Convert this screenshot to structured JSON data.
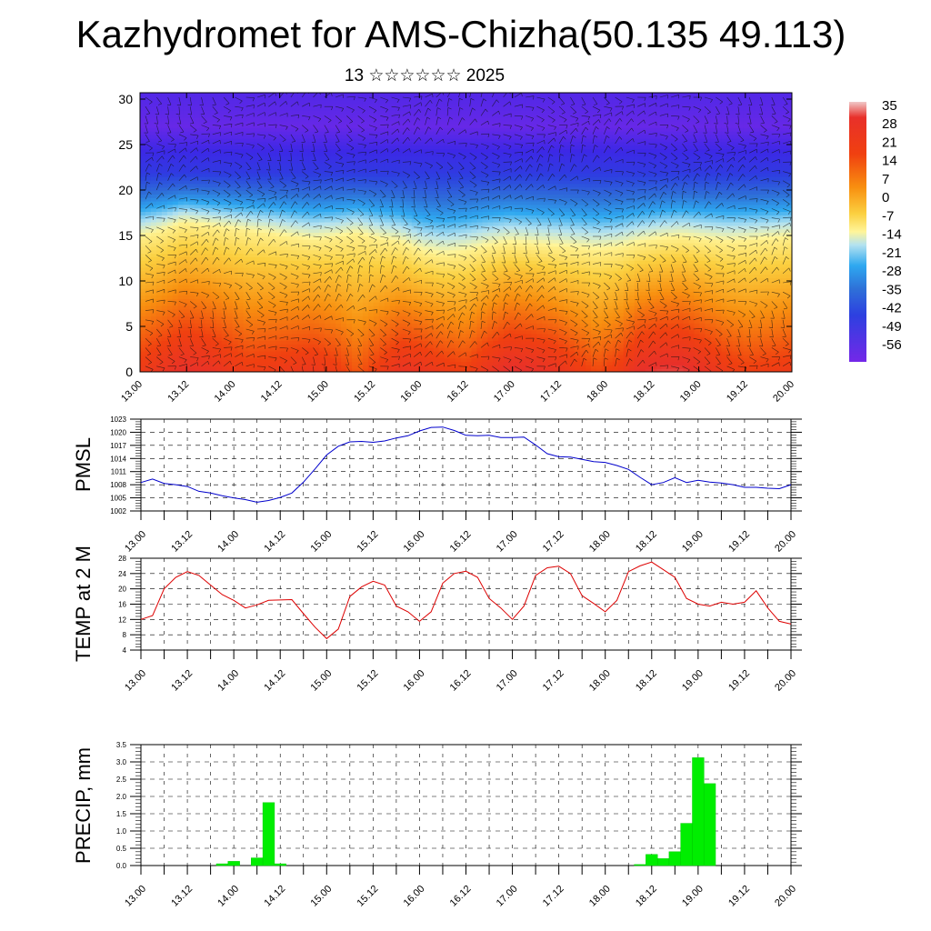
{
  "title": "Kazhydromet for AMS-Chizha(50.135 49.113)",
  "subtitle": "13 ☆☆☆☆☆☆ 2025",
  "chart_data": [
    {
      "type": "heatmap",
      "name": "vertical-cross-section",
      "xlabel": "",
      "ylabel": "",
      "x_tick_labels": [
        "13.00",
        "13.12",
        "14.00",
        "14.12",
        "15.00",
        "15.12",
        "16.00",
        "16.12",
        "17.00",
        "17.12",
        "18.00",
        "18.12",
        "19.00",
        "19.12",
        "20.00"
      ],
      "y_ticks": [
        0,
        5,
        10,
        15,
        20,
        25,
        30
      ],
      "ylim": [
        0,
        30.7
      ],
      "colorbar_labels": [
        "35",
        "28",
        "21",
        "14",
        "7",
        "0",
        "-7",
        "-14",
        "-21",
        "-28",
        "-35",
        "-42",
        "-49",
        "-56"
      ],
      "colorbar_range": [
        -60,
        37
      ],
      "surface_temperature": [
        18,
        21,
        24,
        23,
        20,
        17,
        18,
        19,
        20,
        17,
        12,
        17,
        22,
        21,
        18,
        16,
        21,
        25,
        24,
        22,
        18,
        14,
        17,
        24,
        26,
        26,
        22,
        18,
        16,
        17,
        18
      ],
      "freezing_level_km": [
        14.8,
        15.5,
        16.4,
        16.1,
        15.8,
        15.5,
        15.2,
        14.8,
        14.5,
        14.8,
        15.2,
        14.6,
        14.2,
        13.2,
        12.8,
        13.2,
        13.8,
        14.2,
        14.0,
        13.8,
        13.6,
        13.4,
        13.6,
        14.2,
        14.6,
        14.8,
        14.5,
        14.3,
        14.4,
        14.6,
        14.8
      ],
      "wind_barbs": true
    },
    {
      "type": "line",
      "name": "pmsl",
      "ylabel": "PMSL",
      "x_tick_labels": [
        "13.00",
        "13.12",
        "14.00",
        "14.12",
        "15.00",
        "15.12",
        "16.00",
        "16.12",
        "17.00",
        "17.12",
        "18.00",
        "18.12",
        "19.00",
        "19.12",
        "20.00"
      ],
      "y_ticks": [
        1002,
        1005,
        1008,
        1011,
        1014,
        1017,
        1020,
        1023
      ],
      "ylim": [
        1002,
        1023
      ],
      "color": "#0000cc",
      "x": [
        0,
        3,
        6,
        9,
        12,
        15,
        18,
        21,
        24,
        27,
        30,
        33,
        36,
        39,
        42,
        45,
        48,
        51,
        54,
        57,
        60,
        63,
        66,
        69,
        72,
        75,
        78,
        81,
        84,
        87,
        90,
        93,
        96,
        99,
        102,
        105,
        108,
        111,
        114,
        117,
        120,
        123,
        126,
        129,
        132,
        135,
        138,
        141,
        144,
        147,
        150,
        153,
        156,
        159,
        162,
        165,
        168
      ],
      "values": [
        1008.5,
        1009.3,
        1008.3,
        1008.0,
        1007.6,
        1006.5,
        1006.1,
        1005.5,
        1005.0,
        1004.6,
        1004.0,
        1004.4,
        1005.1,
        1006.1,
        1008.6,
        1011.6,
        1014.8,
        1016.8,
        1017.8,
        1017.9,
        1017.7,
        1018.0,
        1018.7,
        1019.2,
        1020.3,
        1021.1,
        1021.2,
        1020.4,
        1019.3,
        1019.2,
        1019.3,
        1018.8,
        1018.8,
        1018.9,
        1017.1,
        1015.1,
        1014.4,
        1014.3,
        1013.8,
        1013.3,
        1013.1,
        1012.4,
        1011.5,
        1009.7,
        1008.0,
        1008.5,
        1009.6,
        1008.5,
        1009.0,
        1008.6,
        1008.4,
        1008.0,
        1007.4,
        1007.4,
        1007.2,
        1007.1,
        1008.0
      ]
    },
    {
      "type": "line",
      "name": "temp-2m",
      "ylabel": "TEMP at 2 M",
      "x_tick_labels": [
        "13.00",
        "13.12",
        "14.00",
        "14.12",
        "15.00",
        "15.12",
        "16.00",
        "16.12",
        "17.00",
        "17.12",
        "18.00",
        "18.12",
        "19.00",
        "19.12",
        "20.00"
      ],
      "y_ticks": [
        4,
        8,
        12,
        16,
        20,
        24,
        28
      ],
      "ylim": [
        4,
        28
      ],
      "color": "#dd0000",
      "x": [
        0,
        3,
        6,
        9,
        12,
        15,
        18,
        21,
        24,
        27,
        30,
        33,
        36,
        39,
        42,
        45,
        48,
        51,
        54,
        57,
        60,
        63,
        66,
        69,
        72,
        75,
        78,
        81,
        84,
        87,
        90,
        93,
        96,
        99,
        102,
        105,
        108,
        111,
        114,
        117,
        120,
        123,
        126,
        129,
        132,
        135,
        138,
        141,
        144,
        147,
        150,
        153,
        156,
        159,
        162,
        165,
        168
      ],
      "values": [
        12,
        13,
        20,
        23,
        24.5,
        23.5,
        21,
        18.5,
        17,
        15,
        15.8,
        17,
        17.1,
        17.2,
        13.5,
        10,
        7,
        9.5,
        18,
        20.5,
        22,
        21,
        15.5,
        14,
        11.5,
        14,
        21.5,
        24,
        24.6,
        23,
        17.5,
        15,
        12,
        15.5,
        23.5,
        25.5,
        25.9,
        24,
        18.2,
        16.2,
        14,
        17,
        24.5,
        26,
        27,
        25,
        23,
        17.5,
        16,
        15.5,
        16.5,
        16,
        16.5,
        19.5,
        15,
        11.5,
        10.8
      ]
    },
    {
      "type": "bar",
      "name": "precip",
      "ylabel": "PRECIP, mm",
      "x_tick_labels": [
        "13.00",
        "13.12",
        "14.00",
        "14.12",
        "15.00",
        "15.12",
        "16.00",
        "16.12",
        "17.00",
        "17.12",
        "18.00",
        "18.12",
        "19.00",
        "19.12",
        "20.00"
      ],
      "y_tick_labels": [
        "0.0",
        "0.5",
        "1.0",
        "1.5",
        "2.0",
        "2.5",
        "3.0",
        "3.5"
      ],
      "ylim": [
        0,
        3.5
      ],
      "color": "#00ee00",
      "x": [
        21,
        24,
        30,
        33,
        36,
        129,
        132,
        135,
        138,
        141,
        144,
        147
      ],
      "values": [
        0.05,
        0.12,
        0.22,
        1.82,
        0.05,
        0.03,
        0.32,
        0.2,
        0.4,
        1.22,
        3.12,
        2.37
      ]
    }
  ]
}
